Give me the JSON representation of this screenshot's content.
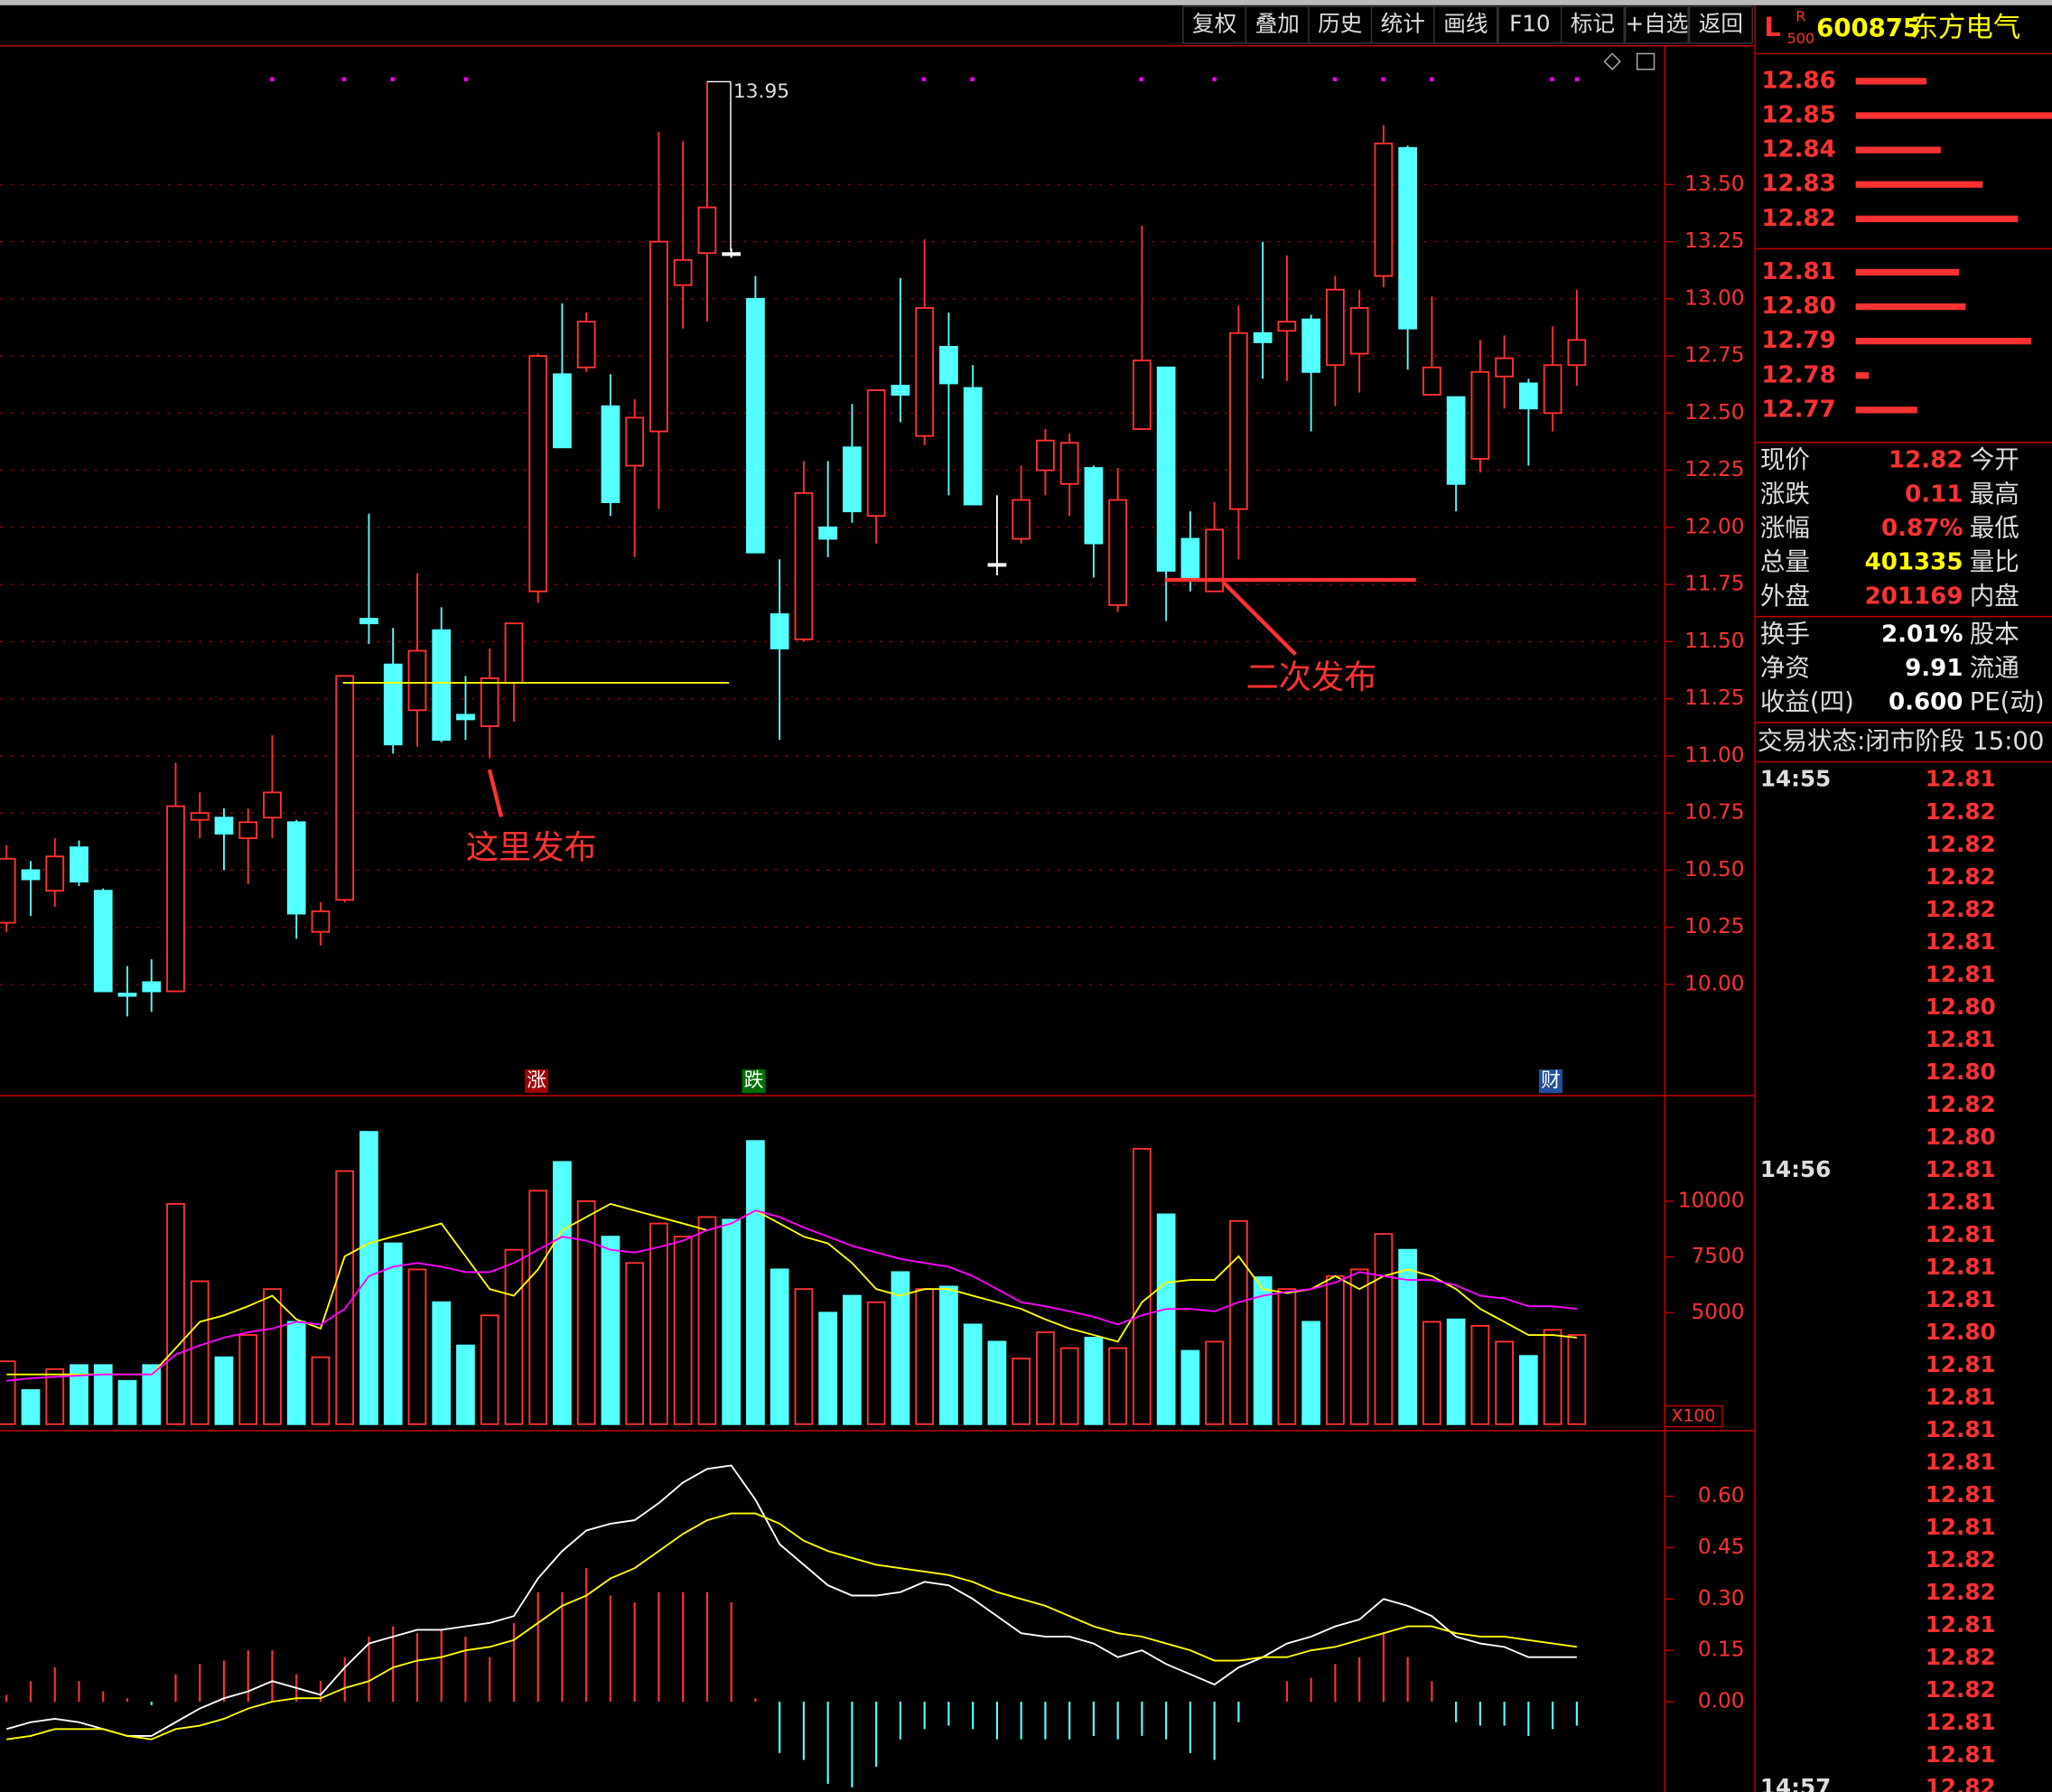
{
  "toolbar": [
    "复权",
    "叠加",
    "历史",
    "统计",
    "画线",
    "F10",
    "标记",
    "+自选",
    "返回"
  ],
  "quote_header": {
    "flag": "L",
    "badge_top": "R",
    "badge_bottom": "500",
    "code": "600875",
    "name": "东方电气"
  },
  "order_book": [
    {
      "price": "12.86",
      "volume": 54
    },
    {
      "price": "12.85",
      "volume": 150
    },
    {
      "price": "12.84",
      "volume": 65
    },
    {
      "price": "12.83",
      "volume": 97
    },
    {
      "price": "12.82",
      "volume": 124
    },
    {
      "price": "12.81",
      "volume": 79
    },
    {
      "price": "12.80",
      "volume": 84
    },
    {
      "price": "12.79",
      "volume": 134
    },
    {
      "price": "12.78",
      "volume": 10
    },
    {
      "price": "12.77",
      "volume": 47
    }
  ],
  "quote_table": [
    [
      "现价",
      "12.82",
      "今开"
    ],
    [
      "涨跌",
      "0.11",
      "最高"
    ],
    [
      "涨幅",
      "0.87%",
      "最低"
    ],
    [
      "总量",
      "401335",
      "量比"
    ],
    [
      "外盘",
      "201169",
      "内盘"
    ],
    [
      "换手",
      "2.01%",
      "股本"
    ],
    [
      "净资",
      "9.91",
      "流通"
    ],
    [
      "收益(四)",
      "0.600",
      "PE(动)"
    ]
  ],
  "status": "交易状态:闭市阶段 15:00",
  "ticks": [
    {
      "time": "14:55",
      "prices": [
        "12.81",
        "12.82",
        "12.82",
        "12.82",
        "12.82",
        "12.81",
        "12.81",
        "12.80",
        "12.81",
        "12.80",
        "12.82",
        "12.80"
      ]
    },
    {
      "time": "14:56",
      "prices": [
        "12.81",
        "12.81",
        "12.81",
        "12.81",
        "12.81",
        "12.80",
        "12.81",
        "12.81",
        "12.81",
        "12.81",
        "12.81",
        "12.81",
        "12.82",
        "12.82",
        "12.81",
        "12.82",
        "12.82",
        "12.81",
        "12.81"
      ]
    },
    {
      "time": "14:57",
      "prices": [
        "12.82"
      ]
    }
  ],
  "chart_data": [
    {
      "type": "candlestick",
      "up_color": "#ff3232",
      "down_color": "#54ffff",
      "flat_color": "#ffffff",
      "grid": true,
      "open": [
        10.27,
        10.5,
        10.41,
        10.6,
        10.41,
        9.96,
        10.01,
        9.97,
        10.72,
        10.73,
        10.64,
        10.73,
        10.71,
        10.23,
        10.37,
        11.6,
        11.4,
        11.2,
        11.55,
        11.18,
        11.13,
        11.32,
        11.72,
        12.67,
        12.7,
        12.53,
        12.27,
        12.42,
        13.06,
        13.2,
        13.2,
        13.0,
        11.62,
        11.51,
        12.0,
        12.35,
        12.05,
        12.62,
        12.4,
        12.79,
        12.61,
        11.84,
        11.95,
        12.25,
        12.19,
        12.26,
        11.66,
        12.43,
        12.7,
        11.95,
        11.72,
        12.08,
        12.85,
        12.86,
        12.91,
        12.71,
        12.76,
        13.1,
        13.66,
        12.58,
        12.57,
        12.3,
        12.66,
        12.63,
        12.5,
        12.71
      ],
      "high": [
        10.61,
        10.54,
        10.64,
        10.63,
        10.42,
        10.08,
        10.11,
        10.97,
        10.84,
        10.77,
        10.77,
        11.09,
        10.72,
        10.36,
        11.35,
        12.06,
        11.56,
        11.8,
        11.65,
        11.35,
        11.47,
        11.58,
        12.76,
        12.98,
        12.94,
        12.67,
        12.56,
        13.73,
        13.69,
        13.95,
        13.22,
        13.1,
        11.86,
        12.29,
        12.29,
        12.54,
        12.6,
        13.09,
        13.26,
        12.94,
        12.71,
        12.14,
        12.27,
        12.43,
        12.41,
        12.27,
        12.26,
        13.32,
        12.7,
        12.07,
        12.11,
        12.97,
        13.25,
        13.19,
        12.93,
        13.1,
        13.04,
        13.76,
        13.67,
        13.01,
        12.57,
        12.82,
        12.84,
        12.65,
        12.88,
        13.04
      ],
      "low": [
        10.23,
        10.3,
        10.34,
        10.43,
        9.97,
        9.86,
        9.88,
        9.97,
        10.64,
        10.5,
        10.44,
        10.64,
        10.2,
        10.17,
        10.36,
        11.49,
        11.01,
        11.04,
        11.06,
        11.07,
        10.99,
        11.15,
        11.67,
        12.35,
        12.68,
        12.05,
        11.87,
        12.08,
        12.87,
        12.9,
        13.18,
        11.89,
        11.07,
        11.5,
        11.87,
        12.02,
        11.93,
        12.46,
        12.36,
        12.14,
        12.1,
        11.79,
        11.93,
        12.14,
        12.05,
        11.78,
        11.63,
        12.43,
        11.59,
        11.72,
        11.72,
        11.86,
        12.65,
        12.64,
        12.42,
        12.53,
        12.59,
        13.05,
        12.69,
        12.58,
        12.07,
        12.24,
        12.52,
        12.27,
        12.42,
        12.62
      ],
      "close": [
        10.55,
        10.46,
        10.56,
        10.45,
        9.97,
        9.95,
        9.97,
        10.78,
        10.75,
        10.66,
        10.71,
        10.84,
        10.31,
        10.32,
        11.35,
        11.58,
        11.05,
        11.46,
        11.07,
        11.16,
        11.34,
        11.58,
        12.75,
        12.35,
        12.9,
        12.11,
        12.48,
        13.25,
        13.17,
        13.4,
        13.2,
        11.89,
        11.47,
        12.15,
        11.95,
        12.07,
        12.6,
        12.58,
        12.96,
        12.63,
        12.1,
        11.84,
        12.12,
        12.38,
        12.37,
        11.93,
        12.12,
        12.73,
        11.81,
        11.78,
        11.99,
        12.85,
        12.81,
        12.9,
        12.68,
        13.04,
        12.96,
        13.68,
        12.87,
        12.7,
        12.19,
        12.68,
        12.74,
        12.52,
        12.71,
        12.82
      ],
      "ylim": [
        9.525,
        14.107
      ],
      "yticks": [
        {
          "value": 10,
          "label": "10.00"
        },
        10.25,
        {
          "value": 10.5,
          "label": "10.50"
        },
        10.75,
        {
          "value": 11,
          "label": "11.00"
        },
        11.25,
        {
          "value": 11.5,
          "label": "11.50"
        },
        11.75,
        {
          "value": 12,
          "label": "12.00"
        },
        12.25,
        {
          "value": 12.5,
          "label": "12.50"
        },
        12.75,
        {
          "value": 13,
          "label": "13.00"
        },
        13.25,
        {
          "value": 13.5,
          "label": "13.50"
        }
      ],
      "max_label": {
        "value": 13.95,
        "label": "13.95"
      },
      "hlines": [
        {
          "value": 11.32,
          "color": "#ffff00"
        },
        {
          "value": 11.77,
          "color": "#ff3232"
        }
      ],
      "notes": [
        "这里发布",
        "二次发布"
      ],
      "event_markers": [
        {
          "label": "涨",
          "color": "#a00000"
        },
        {
          "label": "跌",
          "color": "#007000"
        },
        {
          "label": "财",
          "color": "#1f4fa0"
        }
      ]
    },
    {
      "type": "bar",
      "ylim": [
        0,
        14500
      ],
      "yticks": [
        5000,
        7500,
        10000
      ],
      "unit_label": "X100",
      "values": [
        2820,
        1530,
        2470,
        2650,
        2650,
        1940,
        2650,
        9880,
        6410,
        3000,
        4000,
        6060,
        4590,
        3000,
        11350,
        13110,
        8110,
        6940,
        5470,
        3530,
        4880,
        7820,
        10470,
        11760,
        10000,
        8410,
        7230,
        9000,
        8410,
        9290,
        9170,
        12700,
        6940,
        6060,
        5000,
        5760,
        5470,
        6820,
        6060,
        6170,
        4470,
        3700,
        2940,
        4120,
        3410,
        3880,
        3410,
        12350,
        9410,
        3290,
        3700,
        9110,
        6590,
        6060,
        4590,
        6640,
        6940,
        8530,
        7820,
        4590,
        4700,
        4410,
        3700,
        3060,
        4230,
        4000
      ],
      "lines": [
        {
          "color": "#ffff00",
          "values": [
            2230,
            2230,
            2230,
            2230,
            2230,
            2230,
            2230,
            3410,
            4590,
            4880,
            5290,
            5760,
            4700,
            4290,
            7530,
            8110,
            8410,
            8700,
            9000,
            7530,
            6060,
            5760,
            6940,
            8700,
            9290,
            9880,
            9580,
            9290,
            9000,
            8700,
            9000,
            9580,
            9000,
            8410,
            8110,
            7230,
            6060,
            5760,
            6060,
            6060,
            5760,
            5470,
            5170,
            4700,
            4290,
            4000,
            3700,
            5470,
            6350,
            6470,
            6470,
            7530,
            6060,
            5880,
            6060,
            6640,
            6060,
            6640,
            6940,
            6640,
            6060,
            5170,
            4590,
            4000,
            4000,
            3880
          ]
        },
        {
          "color": "#ff00ff",
          "values": [
            1940,
            2060,
            2120,
            2180,
            2230,
            2230,
            2230,
            3120,
            3530,
            3880,
            4120,
            4290,
            4590,
            4470,
            5170,
            6640,
            7060,
            7230,
            7060,
            6820,
            6820,
            7230,
            7820,
            8410,
            8230,
            7820,
            7700,
            7940,
            8230,
            8700,
            9000,
            9580,
            9290,
            8820,
            8410,
            8000,
            7700,
            7410,
            7230,
            7060,
            6640,
            6060,
            5470,
            5290,
            5060,
            4820,
            4470,
            4880,
            5170,
            5170,
            5060,
            5470,
            5760,
            5940,
            6060,
            6350,
            6820,
            6640,
            6470,
            6470,
            6230,
            5760,
            5640,
            5290,
            5290,
            5170
          ]
        }
      ]
    },
    {
      "type": "macd",
      "ylim": [
        -0.26,
        0.78
      ],
      "yticks": [
        {
          "value": 0,
          "label": "0.00"
        },
        0.15,
        {
          "value": 0.3,
          "label": "0.30"
        },
        0.45,
        {
          "value": 0.6,
          "label": "0.60"
        }
      ],
      "values": [
        0.02,
        0.06,
        0.1,
        0.06,
        0.03,
        0.01,
        -0.01,
        0.08,
        0.11,
        0.12,
        0.15,
        0.15,
        0.08,
        0.06,
        0.13,
        0.19,
        0.22,
        0.2,
        0.21,
        0.19,
        0.13,
        0.23,
        0.32,
        0.32,
        0.39,
        0.31,
        0.29,
        0.32,
        0.32,
        0.32,
        0.29,
        0.01,
        -0.15,
        -0.17,
        -0.24,
        -0.25,
        -0.19,
        -0.11,
        -0.08,
        -0.07,
        -0.08,
        -0.11,
        -0.11,
        -0.11,
        -0.11,
        -0.1,
        -0.11,
        -0.1,
        -0.11,
        -0.15,
        -0.17,
        -0.06,
        0,
        0.06,
        0.07,
        0.11,
        0.13,
        0.2,
        0.13,
        0.06,
        -0.06,
        -0.07,
        -0.07,
        -0.1,
        -0.08,
        -0.07
      ],
      "lines": [
        {
          "color": "#ffffff",
          "values": [
            -0.08,
            -0.06,
            -0.05,
            -0.06,
            -0.08,
            -0.1,
            -0.1,
            -0.06,
            -0.02,
            0.01,
            0.03,
            0.06,
            0.04,
            0.02,
            0.1,
            0.17,
            0.19,
            0.21,
            0.21,
            0.22,
            0.23,
            0.25,
            0.36,
            0.44,
            0.5,
            0.52,
            0.53,
            0.58,
            0.64,
            0.68,
            0.69,
            0.59,
            0.46,
            0.4,
            0.34,
            0.31,
            0.31,
            0.32,
            0.35,
            0.34,
            0.3,
            0.25,
            0.2,
            0.19,
            0.19,
            0.17,
            0.13,
            0.15,
            0.11,
            0.08,
            0.05,
            0.1,
            0.13,
            0.17,
            0.19,
            0.22,
            0.24,
            0.3,
            0.28,
            0.25,
            0.19,
            0.17,
            0.16,
            0.13,
            0.13,
            0.13
          ]
        },
        {
          "color": "#ffff00",
          "values": [
            -0.11,
            -0.1,
            -0.08,
            -0.08,
            -0.08,
            -0.1,
            -0.11,
            -0.08,
            -0.07,
            -0.05,
            -0.02,
            0.0,
            0.01,
            0.01,
            0.04,
            0.06,
            0.1,
            0.12,
            0.13,
            0.15,
            0.16,
            0.18,
            0.23,
            0.28,
            0.31,
            0.36,
            0.39,
            0.44,
            0.49,
            0.53,
            0.55,
            0.55,
            0.52,
            0.47,
            0.44,
            0.42,
            0.4,
            0.39,
            0.38,
            0.37,
            0.35,
            0.32,
            0.3,
            0.28,
            0.25,
            0.22,
            0.2,
            0.19,
            0.17,
            0.15,
            0.12,
            0.12,
            0.13,
            0.13,
            0.15,
            0.16,
            0.18,
            0.2,
            0.22,
            0.22,
            0.2,
            0.19,
            0.19,
            0.18,
            0.17,
            0.16
          ]
        }
      ]
    }
  ]
}
